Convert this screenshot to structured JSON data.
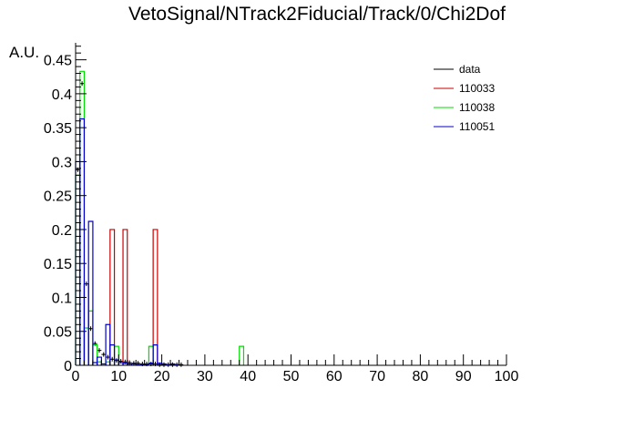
{
  "chart_data": {
    "type": "histogram",
    "title": "VetoSignal/NTrack2Fiducial/Track/0/Chi2Dof",
    "xlabel": "",
    "ylabel": "A.U.",
    "xlim": [
      0,
      100
    ],
    "ylim": [
      0,
      0.475
    ],
    "bin_width": 1,
    "grid": false,
    "legend_position": "top-right",
    "x_ticks": [
      0,
      10,
      20,
      30,
      40,
      50,
      60,
      70,
      80,
      90,
      100
    ],
    "y_ticks": [
      0,
      0.05,
      0.1,
      0.15,
      0.2,
      0.25,
      0.3,
      0.35,
      0.4,
      0.45
    ],
    "y_tick_labels": [
      "0",
      "0.05",
      "0.1",
      "0.15",
      "0.2",
      "0.25",
      "0.3",
      "0.35",
      "0.4",
      "0.45"
    ],
    "series": [
      {
        "name": "data",
        "style": "points",
        "color": "#000000",
        "x": [
          0.5,
          1.5,
          2.5,
          3.5,
          4.5,
          5.5,
          6.5,
          7.5,
          8.5,
          9.5,
          10.5,
          11.5,
          12.5,
          13.5,
          14.5,
          15.5,
          16.5,
          17.5,
          18.5,
          19.5,
          20.5,
          21.5,
          22.5,
          23.5,
          24.5
        ],
        "values": [
          0.288,
          0.415,
          0.12,
          0.054,
          0.032,
          0.022,
          0.016,
          0.012,
          0.009,
          0.007,
          0.006,
          0.005,
          0.004,
          0.003,
          0.003,
          0.002,
          0.002,
          0.002,
          0.002,
          0.001,
          0.001,
          0.001,
          0.001,
          0.001,
          0.001
        ]
      },
      {
        "name": "110033",
        "style": "step",
        "color": "#cc0000",
        "bins": [
          {
            "x0": 8,
            "x1": 9,
            "value": 0.2
          },
          {
            "x0": 11,
            "x1": 12,
            "value": 0.2
          },
          {
            "x0": 18,
            "x1": 19,
            "value": 0.2
          }
        ]
      },
      {
        "name": "110038",
        "style": "step",
        "color": "#00dd00",
        "bins": [
          {
            "x0": 0,
            "x1": 1,
            "value": 0.28
          },
          {
            "x0": 1,
            "x1": 2,
            "value": 0.433
          },
          {
            "x0": 2,
            "x1": 3,
            "value": 0.055
          },
          {
            "x0": 3,
            "x1": 4,
            "value": 0.08
          },
          {
            "x0": 4,
            "x1": 5,
            "value": 0.03
          },
          {
            "x0": 5,
            "x1": 6,
            "value": 0.005
          },
          {
            "x0": 7,
            "x1": 8,
            "value": 0.005
          },
          {
            "x0": 9,
            "x1": 10,
            "value": 0.028
          },
          {
            "x0": 17,
            "x1": 18,
            "value": 0.028
          },
          {
            "x0": 38,
            "x1": 39,
            "value": 0.028
          }
        ]
      },
      {
        "name": "110051",
        "style": "step",
        "color": "#0000cc",
        "bins": [
          {
            "x0": 0,
            "x1": 1,
            "value": 0.3
          },
          {
            "x0": 1,
            "x1": 2,
            "value": 0.363
          },
          {
            "x0": 2,
            "x1": 3,
            "value": 0.12
          },
          {
            "x0": 3,
            "x1": 4,
            "value": 0.212
          },
          {
            "x0": 4,
            "x1": 5,
            "value": 0.004
          },
          {
            "x0": 5,
            "x1": 6,
            "value": 0.012
          },
          {
            "x0": 6,
            "x1": 7,
            "value": 0.002
          },
          {
            "x0": 7,
            "x1": 8,
            "value": 0.06
          },
          {
            "x0": 8,
            "x1": 9,
            "value": 0.03
          },
          {
            "x0": 9,
            "x1": 10,
            "value": 0.008
          },
          {
            "x0": 10,
            "x1": 11,
            "value": 0.004
          },
          {
            "x0": 11,
            "x1": 12,
            "value": 0.003
          },
          {
            "x0": 12,
            "x1": 13,
            "value": 0.002
          },
          {
            "x0": 13,
            "x1": 14,
            "value": 0.002
          },
          {
            "x0": 14,
            "x1": 15,
            "value": 0.001
          },
          {
            "x0": 15,
            "x1": 16,
            "value": 0.001
          },
          {
            "x0": 16,
            "x1": 17,
            "value": 0.001
          },
          {
            "x0": 17,
            "x1": 18,
            "value": 0.003
          },
          {
            "x0": 18,
            "x1": 19,
            "value": 0.03
          },
          {
            "x0": 19,
            "x1": 20,
            "value": 0.003
          },
          {
            "x0": 20,
            "x1": 21,
            "value": 0.002
          },
          {
            "x0": 21,
            "x1": 22,
            "value": 0.001
          },
          {
            "x0": 22,
            "x1": 23,
            "value": 0.002
          },
          {
            "x0": 23,
            "x1": 24,
            "value": 0.001
          }
        ]
      }
    ]
  }
}
